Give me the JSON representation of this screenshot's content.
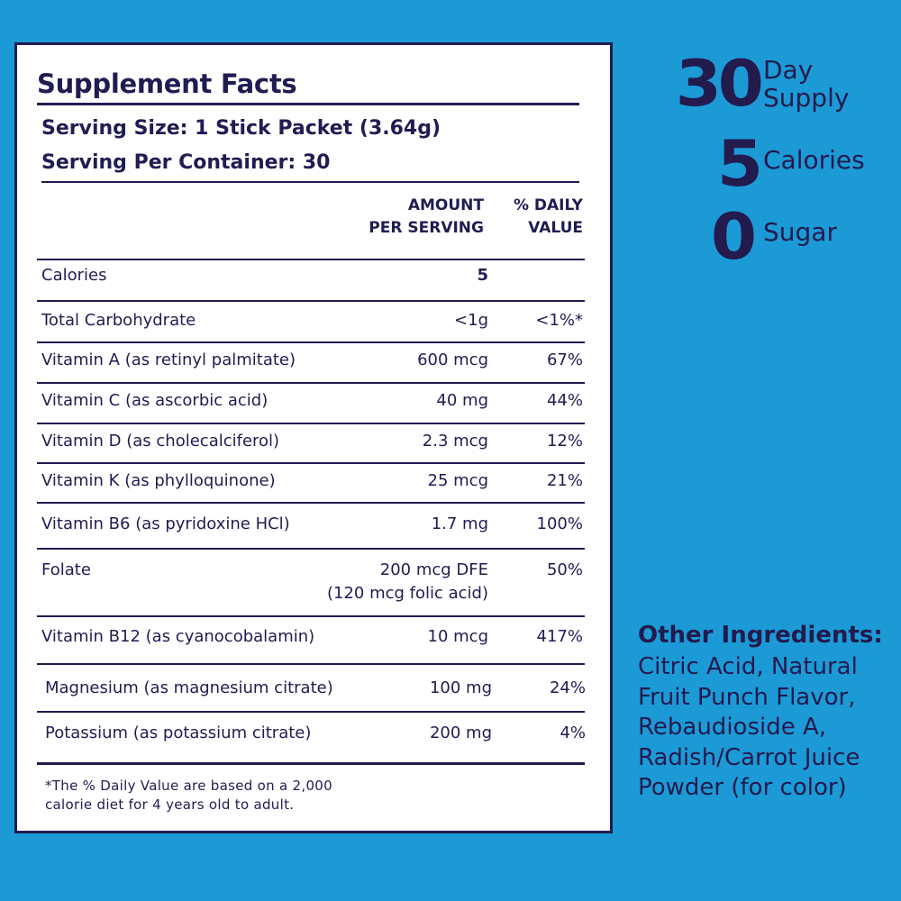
{
  "facts": {
    "title": "Supplement Facts",
    "serving_size": "Serving Size: 1 Stick Packet (3.64g)",
    "servings_per_container": "Serving Per Container: 30",
    "col_amount": [
      "AMOUNT",
      "PER SERVING"
    ],
    "col_dv": [
      "% DAILY",
      "VALUE"
    ],
    "rows": [
      {
        "name": "Calories",
        "amount": "5",
        "dv": ""
      },
      {
        "name": "Total Carbohydrate",
        "amount": "<1g",
        "dv": "<1%*"
      },
      {
        "name": "Vitamin A (as retinyl palmitate)",
        "amount": "600 mcg",
        "dv": "67%"
      },
      {
        "name": "Vitamin C (as ascorbic acid)",
        "amount": "40 mg",
        "dv": "44%"
      },
      {
        "name": "Vitamin D (as cholecalciferol)",
        "amount": "2.3 mcg",
        "dv": "12%"
      },
      {
        "name": "Vitamin K (as phylloquinone)",
        "amount": "25 mcg",
        "dv": "21%"
      },
      {
        "name": "Vitamin B6 (as pyridoxine HCl)",
        "amount": "1.7 mg",
        "dv": "100%"
      },
      {
        "name": "Folate",
        "amount": "200 mcg DFE",
        "amount2": "(120 mcg folic acid)",
        "dv": "50%"
      },
      {
        "name": "Vitamin B12 (as cyanocobalamin)",
        "amount": "10 mcg",
        "dv": "417%"
      },
      {
        "name": "Magnesium (as magnesium citrate)",
        "amount": "100 mg",
        "dv": "24%"
      },
      {
        "name": "Potassium (as potassium citrate)",
        "amount": "200 mg",
        "dv": "4%"
      }
    ],
    "footnote": [
      "*The % Daily Value are based on a 2,000",
      "calorie diet for 4 years old to adult."
    ]
  },
  "highlights": [
    {
      "number": "30",
      "label": [
        "Day",
        "Supply"
      ]
    },
    {
      "number": "5",
      "label": [
        "Calories"
      ]
    },
    {
      "number": "0",
      "label": [
        "Sugar"
      ]
    }
  ],
  "other_ingredients": {
    "heading": "Other Ingredients:",
    "lines": [
      "Citric Acid, Natural",
      "Fruit Punch Flavor,",
      "Rebaudioside A,",
      "Radish/Carrot Juice",
      "Powder (for color)"
    ]
  },
  "colors": {
    "background": "#1b9ad6",
    "text": "#211c52",
    "panel": "#ffffff"
  }
}
